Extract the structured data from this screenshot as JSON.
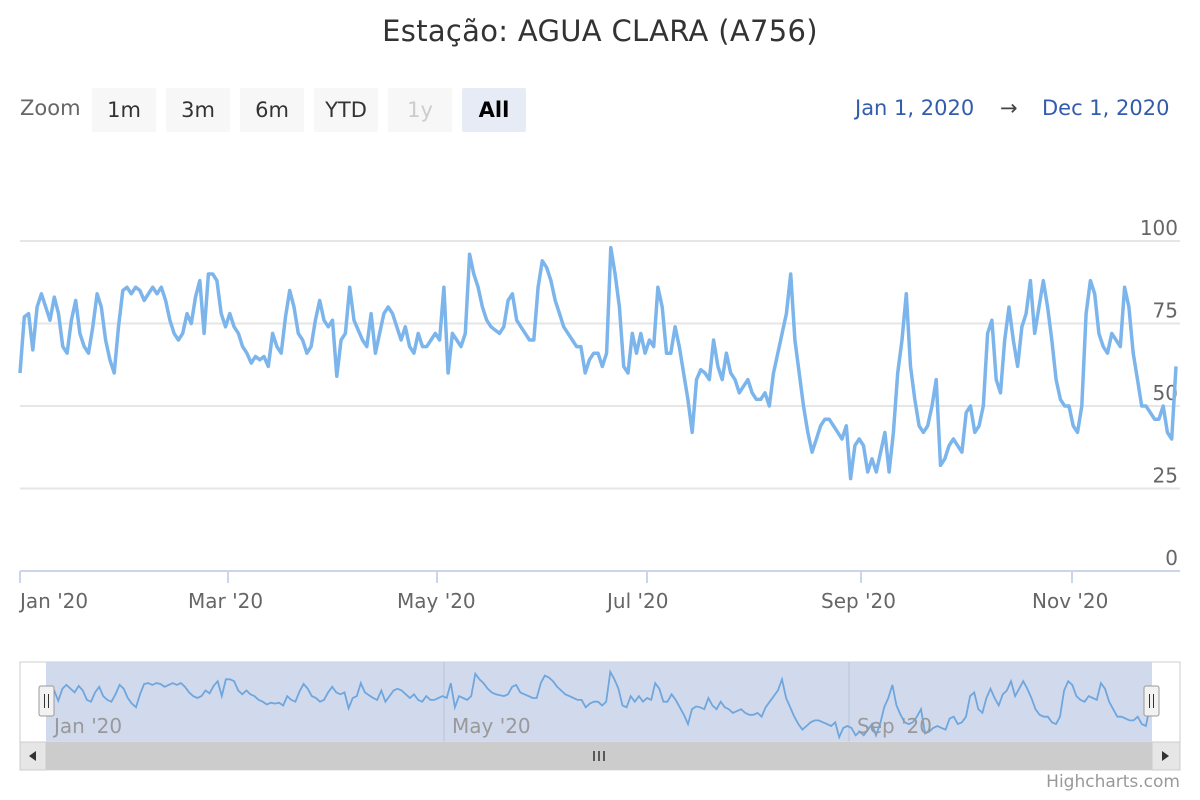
{
  "title": "Estação: AGUA CLARA (A756)",
  "zoom": {
    "label": "Zoom",
    "buttons": [
      {
        "label": "1m",
        "state": "normal"
      },
      {
        "label": "3m",
        "state": "normal"
      },
      {
        "label": "6m",
        "state": "normal"
      },
      {
        "label": "YTD",
        "state": "normal"
      },
      {
        "label": "1y",
        "state": "disabled"
      },
      {
        "label": "All",
        "state": "active"
      }
    ]
  },
  "range": {
    "from": "Jan 1, 2020",
    "arrow": "→",
    "to": "Dec 1, 2020"
  },
  "credits": "Highcharts.com",
  "colors": {
    "series": "#7cb5ec",
    "navigator_fill": "#ccd6eb",
    "grid": "#e6e6e6",
    "axis": "#ccd6eb"
  },
  "chart_data": {
    "type": "line",
    "title": "Estação: AGUA CLARA (A756)",
    "x_start": "2020-01-01",
    "x_end": "2020-12-01",
    "x_interval": "2 days",
    "ylim": [
      0,
      100
    ],
    "y_ticks": [
      0,
      25,
      50,
      75,
      100
    ],
    "x_ticks": [
      "Jan '20",
      "Mar '20",
      "May '20",
      "Jul '20",
      "Sep '20",
      "Nov '20"
    ],
    "navigator_ticks": [
      "Jan '20",
      "May '20",
      "Sep '20"
    ],
    "grid": true,
    "series": [
      {
        "values": [
          60,
          77,
          78,
          67,
          80,
          84,
          80,
          76,
          83,
          78,
          68,
          66,
          76,
          82,
          72,
          68,
          66,
          74,
          84,
          80,
          70,
          64,
          60,
          74,
          85,
          86,
          84,
          86,
          85,
          82,
          84,
          86,
          84,
          86,
          82,
          76,
          72,
          70,
          72,
          78,
          75,
          83,
          88,
          72,
          90,
          90,
          88,
          78,
          74,
          78,
          74,
          72,
          68,
          66,
          63,
          65,
          64,
          65,
          62,
          72,
          68,
          66,
          77,
          85,
          80,
          72,
          70,
          66,
          68,
          76,
          82,
          76,
          74,
          76,
          59,
          70,
          72,
          86,
          76,
          73,
          70,
          68,
          78,
          66,
          72,
          78,
          80,
          78,
          74,
          70,
          74,
          68,
          66,
          72,
          68,
          68,
          70,
          72,
          70,
          86,
          60,
          72,
          70,
          68,
          72,
          96,
          90,
          86,
          80,
          76,
          74,
          73,
          72,
          74,
          82,
          84,
          76,
          74,
          72,
          70,
          70,
          86,
          94,
          92,
          88,
          82,
          78,
          74,
          72,
          70,
          68,
          68,
          60,
          64,
          66,
          66,
          62,
          66,
          98,
          90,
          80,
          62,
          60,
          72,
          66,
          72,
          66,
          70,
          68,
          86,
          80,
          66,
          66,
          74,
          68,
          60,
          52,
          42,
          58,
          61,
          60,
          58,
          70,
          62,
          58,
          66,
          60,
          58,
          54,
          56,
          58,
          54,
          52,
          52,
          54,
          50,
          60,
          66,
          72,
          78,
          90,
          70,
          60,
          50,
          42,
          36,
          40,
          44,
          46,
          46,
          44,
          42,
          40,
          44,
          28,
          38,
          40,
          38,
          30,
          34,
          30,
          36,
          42,
          30,
          42,
          60,
          70,
          84,
          62,
          52,
          44,
          42,
          44,
          50,
          58,
          32,
          34,
          38,
          40,
          38,
          36,
          48,
          50,
          42,
          44,
          50,
          72,
          76,
          58,
          54,
          70,
          80,
          70,
          62,
          74,
          78,
          88,
          72,
          80,
          88,
          80,
          70,
          58,
          52,
          50,
          50,
          44,
          42,
          50,
          78,
          88,
          84,
          72,
          68,
          66,
          72,
          70,
          68,
          86,
          80,
          66,
          58,
          50,
          50,
          48,
          46,
          46,
          50,
          42,
          40,
          62
        ]
      }
    ]
  }
}
